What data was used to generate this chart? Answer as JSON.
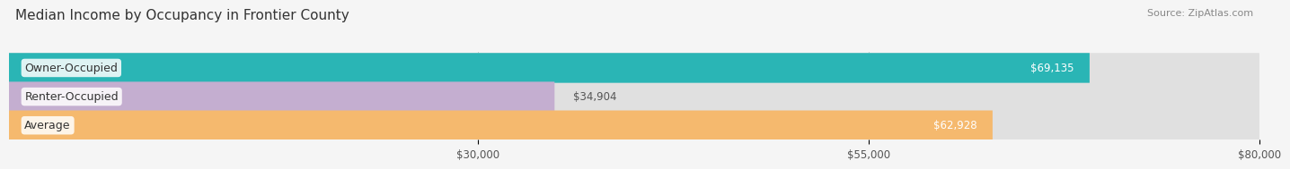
{
  "title": "Median Income by Occupancy in Frontier County",
  "source": "Source: ZipAtlas.com",
  "categories": [
    "Owner-Occupied",
    "Renter-Occupied",
    "Average"
  ],
  "values": [
    69135,
    34904,
    62928
  ],
  "bar_colors": [
    "#2ab5b5",
    "#c4aed0",
    "#f5b96e"
  ],
  "label_colors": [
    "#ffffff",
    "#555555",
    "#ffffff"
  ],
  "background_color": "#f5f5f5",
  "bar_bg_color": "#e0e0e0",
  "xlim": [
    0,
    80000
  ],
  "xticks": [
    30000,
    55000,
    80000
  ],
  "xtick_labels": [
    "$30,000",
    "$55,000",
    "$80,000"
  ],
  "title_fontsize": 11,
  "source_fontsize": 8,
  "bar_label_fontsize": 8.5,
  "cat_label_fontsize": 9,
  "tick_fontsize": 8.5,
  "bar_height": 0.52
}
